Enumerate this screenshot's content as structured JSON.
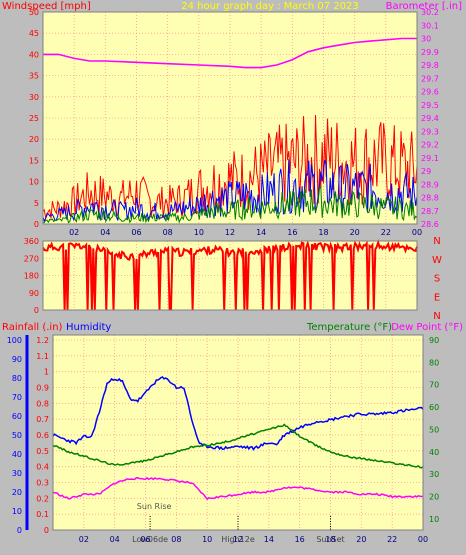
{
  "chart_data": [
    {
      "type": "line",
      "title": "24 hour graph day : March 07 2023",
      "ylabel_left": "Windspeed [mph]",
      "ylabel_right": "Barometer [.in]",
      "x_ticks": [
        "02",
        "04",
        "06",
        "08",
        "10",
        "12",
        "14",
        "16",
        "18",
        "20",
        "22",
        "00"
      ],
      "x_range_hours": [
        0,
        24
      ],
      "y_left_ticks": [
        "0",
        "5",
        "10",
        "15",
        "20",
        "25",
        "30",
        "35",
        "40",
        "45",
        "50"
      ],
      "y_left_range": [
        0,
        50
      ],
      "y_right_ticks": [
        "28.6",
        "28.7",
        "28.8",
        "28.9",
        "29",
        "29.1",
        "29.2",
        "29.3",
        "29.4",
        "29.5",
        "29.6",
        "29.7",
        "29.8",
        "29.9",
        "30",
        "30.1",
        "30.2"
      ],
      "y_right_range": [
        28.6,
        30.2
      ],
      "grid": true,
      "series": [
        {
          "color": "#ff00ff",
          "axis": "right",
          "x": [
            0,
            1,
            2,
            3,
            4,
            6,
            8,
            10,
            12,
            13,
            14,
            15,
            16,
            17,
            18,
            19,
            20,
            21,
            22,
            23,
            24
          ],
          "values": [
            29.88,
            29.88,
            29.85,
            29.83,
            29.83,
            29.82,
            29.81,
            29.8,
            29.79,
            29.78,
            29.78,
            29.8,
            29.84,
            29.9,
            29.93,
            29.95,
            29.97,
            29.98,
            29.99,
            30.0,
            30.0
          ]
        },
        {
          "color": "#ff0000",
          "axis": "left",
          "x": [
            0,
            1,
            2,
            3,
            4,
            5,
            6,
            7,
            8,
            9,
            10,
            11,
            12,
            13,
            14,
            15,
            16,
            17,
            18,
            19,
            20,
            21,
            22,
            23,
            24
          ],
          "values": [
            4,
            5,
            7,
            10,
            9,
            8,
            10,
            7,
            7,
            8,
            11,
            13,
            14,
            14,
            16,
            18,
            19,
            20,
            21,
            20,
            19,
            20,
            19,
            18,
            17
          ]
        },
        {
          "color": "#0000ff",
          "axis": "left",
          "x": [
            0,
            1,
            2,
            3,
            4,
            5,
            6,
            7,
            8,
            9,
            10,
            11,
            12,
            13,
            14,
            15,
            16,
            17,
            18,
            19,
            20,
            21,
            22,
            23,
            24
          ],
          "values": [
            2,
            3,
            4,
            6,
            5,
            4,
            5,
            4,
            4,
            5,
            6,
            8,
            8,
            9,
            9,
            11,
            12,
            12,
            12,
            11,
            11,
            11,
            10,
            10,
            9
          ]
        },
        {
          "color": "#008000",
          "axis": "left",
          "x": [
            0,
            1,
            2,
            3,
            4,
            5,
            6,
            7,
            8,
            9,
            10,
            11,
            12,
            13,
            14,
            15,
            16,
            17,
            18,
            19,
            20,
            21,
            22,
            23,
            24
          ],
          "values": [
            1,
            1,
            2,
            3,
            3,
            2,
            2,
            2,
            2,
            2,
            3,
            4,
            4,
            5,
            5,
            6,
            6,
            7,
            7,
            6,
            6,
            6,
            5,
            5,
            4
          ]
        }
      ]
    },
    {
      "type": "scatter",
      "ylabel_right": [
        "N",
        "W",
        "S",
        "E",
        "N"
      ],
      "y_left_ticks": [
        "0",
        "90",
        "180",
        "270",
        "360"
      ],
      "y_range": [
        0,
        360
      ],
      "x_range_hours": [
        0,
        24
      ],
      "grid": true,
      "series": [
        {
          "color": "#ff0000",
          "x": [
            0,
            1,
            2,
            3,
            4,
            5,
            6,
            7,
            8,
            9,
            10,
            11,
            12,
            13,
            14,
            15,
            16,
            17,
            18,
            19,
            20,
            21,
            22,
            23,
            24
          ],
          "values": [
            320,
            330,
            335,
            330,
            300,
            285,
            280,
            300,
            305,
            300,
            310,
            315,
            300,
            305,
            310,
            320,
            330,
            335,
            330,
            325,
            330,
            335,
            330,
            325,
            320
          ]
        }
      ]
    },
    {
      "type": "line",
      "ylabel_left_outer": "Rainfall (.in)",
      "ylabel_left_inner": "Humidity",
      "ylabel_right": "Temperature (°F)",
      "ylabel_right2": "Dew Point (°F)",
      "x_ticks": [
        "02",
        "04",
        "06",
        "08",
        "10",
        "12",
        "14",
        "16",
        "18",
        "20",
        "22",
        "00"
      ],
      "x_range_hours": [
        0,
        24
      ],
      "humidity_ticks": [
        "0",
        "10",
        "20",
        "30",
        "40",
        "50",
        "60",
        "70",
        "80",
        "90",
        "100"
      ],
      "humidity_range": [
        0,
        100
      ],
      "rain_ticks": [
        "0",
        "0.1",
        "0.2",
        "0.3",
        "0.4",
        "0.5",
        "0.6",
        "0.7",
        "0.8",
        "0.9",
        "1",
        "1.1",
        "1.2"
      ],
      "rain_range": [
        0,
        1.2
      ],
      "temp_ticks": [
        "10",
        "20",
        "30",
        "40",
        "50",
        "60",
        "70",
        "80",
        "90"
      ],
      "temp_range": [
        5,
        90
      ],
      "annotations": [
        {
          "text": "Sun Rise",
          "hour": 6.3
        },
        {
          "text": "Low06de",
          "hour": 6.3
        },
        {
          "text": "High12e",
          "hour": 12.0
        },
        {
          "text": "SunSet",
          "hour": 18.0
        }
      ],
      "grid": true,
      "series": [
        {
          "name": "Humidity",
          "color": "#0000ff",
          "axis": "humidity",
          "x": [
            0,
            1,
            1.5,
            2,
            2.5,
            3,
            3.5,
            4,
            4.5,
            5,
            5.5,
            6,
            6.5,
            7,
            7.5,
            8,
            8.5,
            9,
            9.5,
            10,
            11,
            12,
            13,
            14,
            14.5,
            15,
            16,
            17,
            18,
            19,
            20,
            21,
            22,
            23,
            24
          ],
          "values": [
            50,
            47,
            46,
            49,
            49,
            62,
            77,
            80,
            78,
            69,
            68,
            72,
            77,
            80,
            79,
            75,
            75,
            58,
            45,
            44,
            43,
            44,
            43,
            46,
            45,
            50,
            54,
            57,
            58,
            60,
            61,
            61,
            62,
            63,
            64
          ]
        },
        {
          "name": "Temperature",
          "color": "#008000",
          "axis": "temp",
          "x": [
            0,
            1,
            2,
            3,
            4,
            5,
            6,
            7,
            8,
            9,
            10,
            11,
            12,
            13,
            14,
            15,
            16,
            17,
            18,
            19,
            20,
            21,
            22,
            23,
            24
          ],
          "values": [
            43,
            40,
            38,
            36,
            34,
            35,
            36,
            38,
            40,
            42,
            43,
            44,
            46,
            48,
            50,
            52,
            47,
            43,
            40,
            38,
            37,
            36,
            35,
            34,
            33
          ]
        },
        {
          "name": "Dew Point",
          "color": "#ff00ff",
          "axis": "temp",
          "x": [
            0,
            1,
            2,
            3,
            4,
            5,
            6,
            7,
            8,
            9,
            10,
            11,
            12,
            13,
            14,
            15,
            16,
            17,
            18,
            19,
            20,
            21,
            22,
            23,
            24
          ],
          "values": [
            22,
            19,
            21,
            21,
            26,
            28,
            28,
            28,
            27,
            26,
            19,
            20,
            21,
            22,
            22,
            24,
            24,
            23,
            22,
            22,
            21,
            21,
            20,
            20,
            20
          ]
        }
      ]
    }
  ]
}
